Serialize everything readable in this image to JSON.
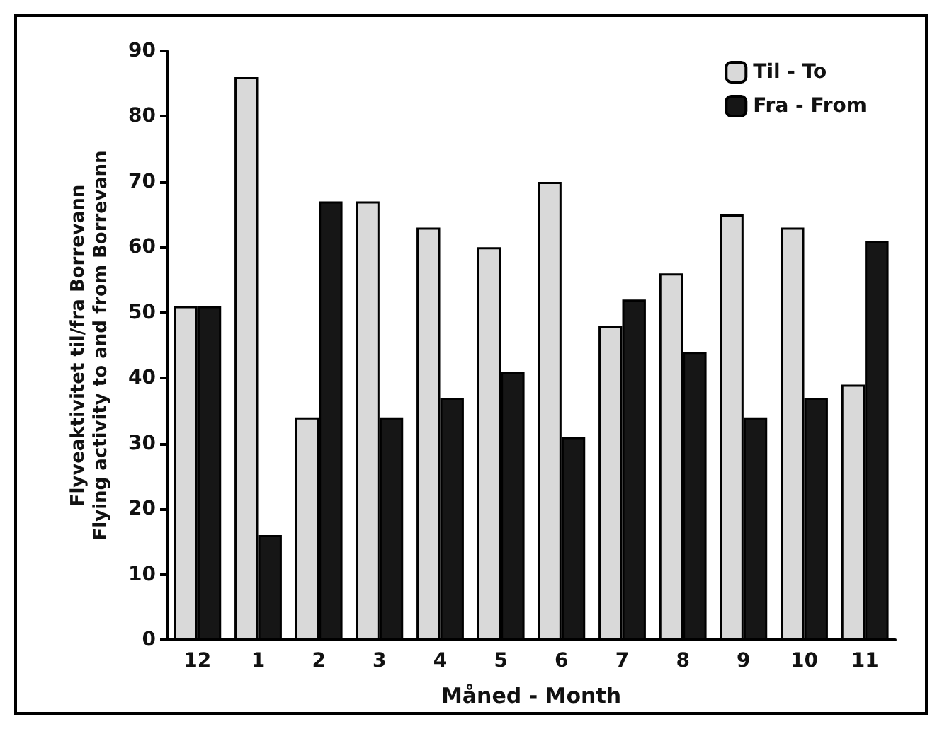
{
  "chart_data": {
    "type": "bar",
    "xlabel": "Måned - Month",
    "ylabel": "Flyveaktivitet til/fra Borrevann\nFlying activity to and from Borrevann",
    "categories": [
      "12",
      "1",
      "2",
      "3",
      "4",
      "5",
      "6",
      "7",
      "8",
      "9",
      "10",
      "11"
    ],
    "series": [
      {
        "name": "Til - To",
        "color": "#d9d9d9",
        "values": [
          51,
          86,
          34,
          67,
          63,
          60,
          70,
          48,
          56,
          65,
          63,
          39
        ]
      },
      {
        "name": "Fra - From",
        "color": "#161616",
        "values": [
          51,
          16,
          67,
          34,
          37,
          41,
          31,
          52,
          44,
          34,
          37,
          61
        ]
      }
    ],
    "ylim": [
      0,
      90
    ],
    "yticks": [
      0,
      10,
      20,
      30,
      40,
      50,
      60,
      70,
      80,
      90
    ],
    "grid": false,
    "legend": "top right"
  }
}
